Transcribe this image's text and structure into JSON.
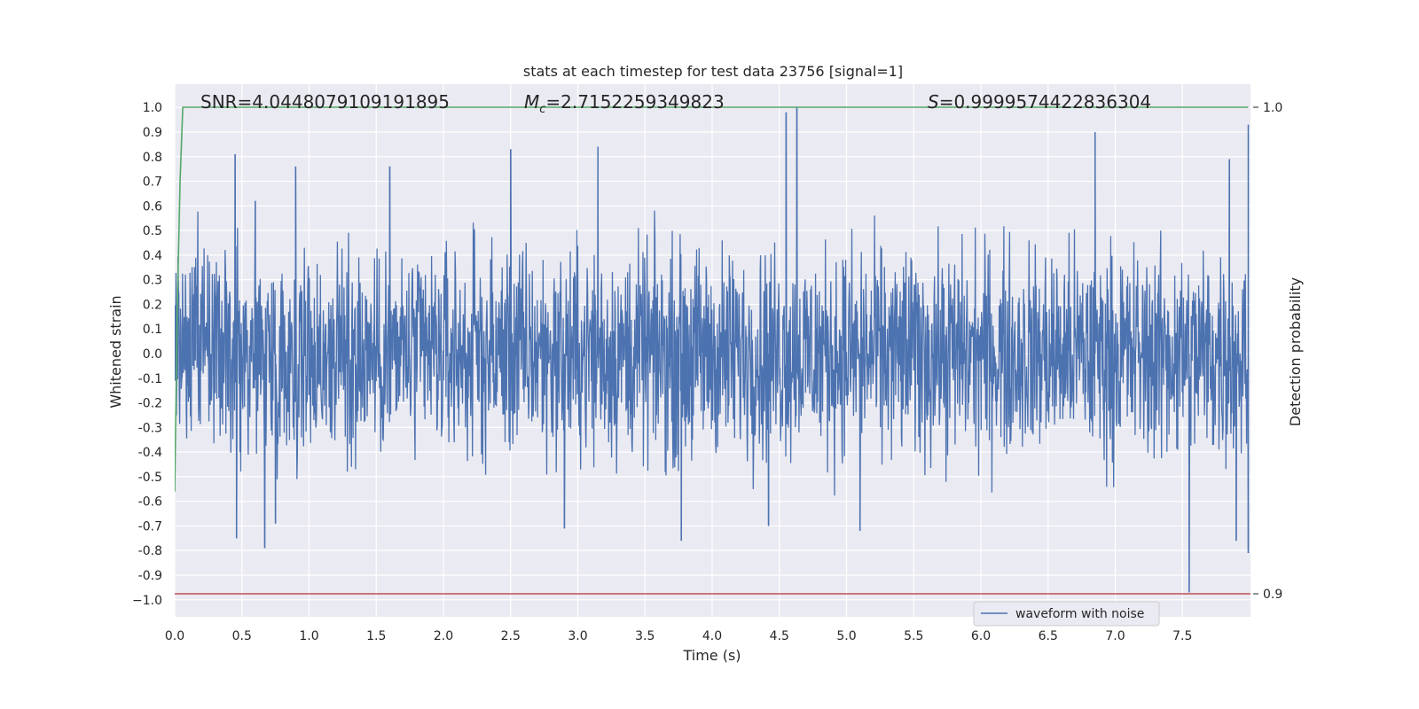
{
  "chart_data": {
    "type": "line",
    "title": "stats at each timestep for test data 23756 [signal=1]",
    "xlabel": "Time (s)",
    "ylabel": "Whitened strain",
    "y2label": "Detection probability",
    "xlim": [
      0.0,
      8.0
    ],
    "ylim": [
      -1.07,
      1.1
    ],
    "y2lim": [
      0.9,
      1.0
    ],
    "grid": true,
    "background": "#eaeaf2",
    "legend_position": "bottom-right",
    "x_ticks": [
      "0.0",
      "0.5",
      "1.0",
      "1.5",
      "2.0",
      "2.5",
      "3.0",
      "3.5",
      "4.0",
      "4.5",
      "5.0",
      "5.5",
      "6.0",
      "6.5",
      "7.0",
      "7.5"
    ],
    "y_ticks": [
      "1.0",
      "0.9",
      "0.8",
      "0.7",
      "0.6",
      "0.5",
      "0.4",
      "0.3",
      "0.2",
      "0.1",
      "0.0",
      "-0.1",
      "-0.2",
      "-0.3",
      "-0.4",
      "-0.5",
      "-0.6",
      "-0.7",
      "-0.8",
      "-0.9",
      "−1.0"
    ],
    "y2_ticks": [
      "1.0",
      "0.9"
    ],
    "annotations": {
      "snr": "SNR=4.0448079109191895",
      "mc_prefix": "M",
      "mc_sub": "c",
      "mc_value": "=2.7152259349823",
      "s_prefix": "S",
      "s_value": "=0.9999574422836304"
    },
    "series": [
      {
        "name": "waveform with noise",
        "color": "#4c72b0",
        "axis": "left",
        "envelope_upper": 0.6,
        "envelope_lower": -0.6,
        "spikes": [
          {
            "x": 0.45,
            "y": 0.81
          },
          {
            "x": 0.6,
            "y": 0.62
          },
          {
            "x": 0.9,
            "y": 0.76
          },
          {
            "x": 1.6,
            "y": 0.76
          },
          {
            "x": 2.5,
            "y": 0.83
          },
          {
            "x": 3.15,
            "y": 0.84
          },
          {
            "x": 4.55,
            "y": 0.98
          },
          {
            "x": 4.63,
            "y": 1.0
          },
          {
            "x": 6.85,
            "y": 0.9
          },
          {
            "x": 7.85,
            "y": 0.79
          },
          {
            "x": 7.99,
            "y": 0.93
          },
          {
            "x": 0.46,
            "y": -0.75
          },
          {
            "x": 0.67,
            "y": -0.79
          },
          {
            "x": 0.75,
            "y": -0.69
          },
          {
            "x": 2.9,
            "y": -0.71
          },
          {
            "x": 3.77,
            "y": -0.76
          },
          {
            "x": 4.42,
            "y": -0.7
          },
          {
            "x": 5.1,
            "y": -0.72
          },
          {
            "x": 7.55,
            "y": -0.97
          },
          {
            "x": 7.9,
            "y": -0.76
          },
          {
            "x": 7.99,
            "y": -0.81
          }
        ]
      },
      {
        "name": "",
        "color": "#55a868",
        "axis": "right",
        "x": [
          0.0,
          0.02,
          0.04,
          0.06,
          7.99
        ],
        "y": [
          0.921,
          0.96,
          0.985,
          1.0,
          1.0
        ]
      }
    ],
    "threshold": {
      "axis": "right",
      "y": 0.9,
      "color": "#c44e52"
    },
    "legend": [
      "waveform with noise"
    ]
  }
}
